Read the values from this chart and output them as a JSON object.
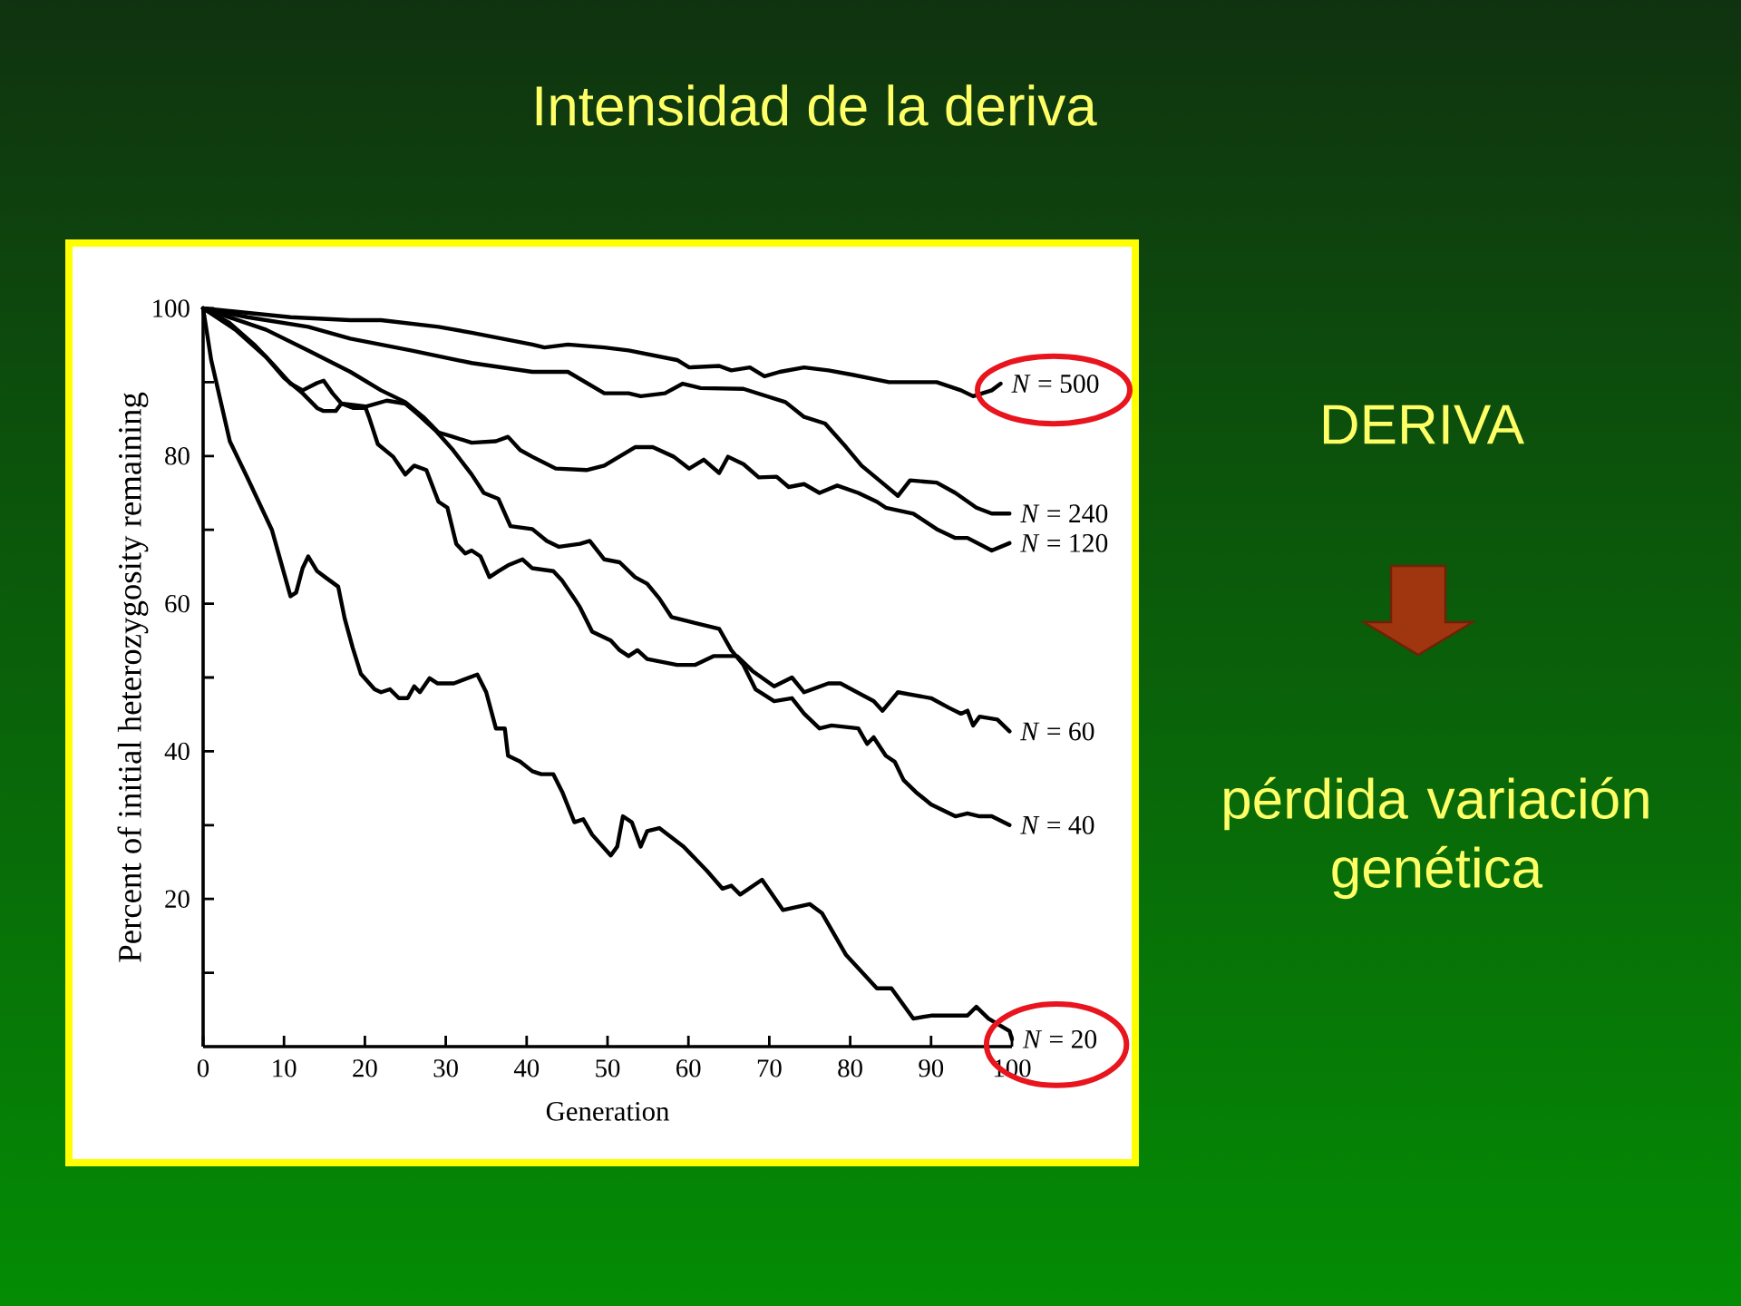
{
  "chart_data": {
    "type": "line",
    "title": "Intensidad de la deriva",
    "xlabel": "Generation",
    "ylabel": "Percent of initial heterozygosity remaining",
    "annotations": [
      "DERIVA",
      "pérdida variación genética"
    ],
    "xlim": [
      0,
      100
    ],
    "ylim": [
      0,
      100
    ],
    "xticks": [
      0,
      10,
      20,
      30,
      40,
      50,
      60,
      70,
      80,
      90,
      100
    ],
    "yticks": [
      {
        "value": 10,
        "label": null
      },
      20,
      {
        "value": 30,
        "label": null
      },
      40,
      {
        "value": 50,
        "label": null
      },
      60,
      {
        "value": 70,
        "label": null
      },
      80,
      {
        "value": 90,
        "label": null
      },
      100
    ],
    "marker": "none",
    "line_style": "solid",
    "series": [
      {
        "name": "*N* = 500",
        "color": "#000000",
        "x": [
          0,
          10.8,
          18.2,
          22,
          29.1,
          33.2,
          40.7,
          42.2,
          45.1,
          49.6,
          52.6,
          58.6,
          60.1,
          63.8,
          65.3,
          67.6,
          69.4,
          71.3,
          74.3,
          77.3,
          80.3,
          84.8,
          90.7,
          93.7,
          95.2,
          97.5,
          98.6
        ],
        "values": [
          100,
          98.8,
          98.4,
          98.4,
          97.5,
          96.7,
          95.1,
          94.7,
          95.1,
          94.7,
          94.3,
          93,
          92,
          92.2,
          91.6,
          92,
          90.8,
          91.4,
          92,
          91.6,
          91,
          90,
          90,
          88.9,
          88.1,
          88.9,
          89.8
        ]
      },
      {
        "name": "*N* = 240",
        "color": "#000000",
        "x": [
          0,
          5.5,
          13,
          18.2,
          25.7,
          33.2,
          40.7,
          45.1,
          49.6,
          52.6,
          54.1,
          57.1,
          59.3,
          61.5,
          66.8,
          72,
          74.3,
          76.9,
          79.5,
          81.4,
          83.6,
          85.9,
          87.4,
          90.7,
          93,
          95.6,
          97.5,
          99.7
        ],
        "values": [
          100,
          98.8,
          97.5,
          95.9,
          94.3,
          92.6,
          91.4,
          91.4,
          88.5,
          88.5,
          88.1,
          88.5,
          89.8,
          89.2,
          89.1,
          87.3,
          85.3,
          84.4,
          81.2,
          78.7,
          76.7,
          74.6,
          76.7,
          76.4,
          75,
          73,
          72.2,
          72.2
        ]
      },
      {
        "name": "*N* = 120",
        "color": "#000000",
        "x": [
          0,
          7.8,
          13,
          18.2,
          22,
          25,
          27.2,
          29.1,
          30.9,
          33.2,
          36.2,
          37.7,
          39.2,
          40.7,
          43.6,
          47.4,
          49.6,
          53.4,
          55.6,
          58.2,
          60.1,
          61.9,
          63.8,
          64.9,
          66.8,
          68.7,
          70.9,
          72.4,
          74.3,
          76.2,
          78.4,
          81,
          83.3,
          84.4,
          87.8,
          90.7,
          93,
          94.5,
          97.5,
          99.7
        ],
        "values": [
          100,
          97.1,
          94.3,
          91.4,
          88.9,
          87.3,
          85.3,
          83.2,
          82.6,
          81.8,
          82,
          82.6,
          80.8,
          79.9,
          78.3,
          78.1,
          78.7,
          81.2,
          81.2,
          79.9,
          78.3,
          79.5,
          77.7,
          79.9,
          78.9,
          77.1,
          77.2,
          75.8,
          76.2,
          75,
          76,
          75,
          73.8,
          73,
          72.2,
          70.1,
          68.9,
          68.9,
          67.2,
          68.2
        ]
      },
      {
        "name": "*N* = 60",
        "color": "#000000",
        "x": [
          0,
          4,
          7.8,
          10,
          12.3,
          14.1,
          14.9,
          16.4,
          17.1,
          18.6,
          20.1,
          20.5,
          21.6,
          23.5,
          25,
          26.1,
          27.6,
          29.1,
          30.2,
          31.3,
          32.4,
          33.2,
          34.3,
          35.4,
          36.5,
          37.7,
          39.5,
          40.7,
          43.3,
          44.4,
          45.9,
          46.6,
          48.1,
          50.4,
          51.5,
          52.6,
          53.7,
          54.9,
          58.6,
          60.8,
          63.1,
          66,
          67.9,
          70.6,
          72.8,
          74.3,
          77.3,
          78.8,
          82.9,
          84,
          85.9,
          90,
          92.2,
          93.7,
          94.5,
          95.2,
          96,
          98.2,
          99.7
        ],
        "values": [
          100,
          97.1,
          93.4,
          90.6,
          88.5,
          86.5,
          86.1,
          86.1,
          87.1,
          86.5,
          86.5,
          85.3,
          81.6,
          79.9,
          77.5,
          78.7,
          78.1,
          73.8,
          73,
          68.1,
          66.8,
          67.2,
          66.4,
          63.6,
          64.4,
          65.2,
          66,
          64.8,
          64.4,
          63.1,
          60.7,
          59.5,
          56.2,
          55,
          53.7,
          52.9,
          53.7,
          52.5,
          51.7,
          51.7,
          52.9,
          52.9,
          50.9,
          48.8,
          50,
          48,
          49.2,
          49.2,
          46.8,
          45.5,
          48,
          47.2,
          45.9,
          45.1,
          45.5,
          43.5,
          44.7,
          44.3,
          42.7
        ]
      },
      {
        "name": "*N* = 40",
        "color": "#000000",
        "x": [
          0,
          3.3,
          6.3,
          8.5,
          10.8,
          12.3,
          14.1,
          14.9,
          16,
          17.1,
          20.1,
          22.7,
          25,
          26.5,
          28.7,
          30.9,
          33.2,
          34.7,
          36.5,
          38,
          40.7,
          42.5,
          44,
          46.6,
          47.8,
          49.6,
          51.5,
          53.4,
          54.9,
          56.4,
          57.9,
          60.8,
          63.8,
          65.3,
          66.8,
          68.3,
          70.6,
          72.8,
          74.3,
          76.2,
          77.7,
          81,
          82.1,
          82.9,
          84.4,
          85.5,
          86.6,
          88.1,
          90,
          91.5,
          93,
          94.5,
          96,
          97.5,
          99.7
        ],
        "values": [
          100,
          98,
          95.1,
          92.6,
          89.8,
          88.9,
          89.9,
          90.2,
          88.5,
          87.1,
          86.7,
          87.5,
          87.1,
          85.7,
          83.5,
          80.8,
          77.5,
          75,
          74.2,
          70.5,
          70.1,
          68.5,
          67.7,
          68.1,
          68.5,
          66,
          65.6,
          63.6,
          62.7,
          60.7,
          58.2,
          57.4,
          56.6,
          53.7,
          51.7,
          48.4,
          46.8,
          47.2,
          45.1,
          43.1,
          43.5,
          43.1,
          41,
          41.9,
          39.4,
          38.6,
          36.1,
          34.5,
          32.8,
          32,
          31.2,
          31.6,
          31.2,
          31.2,
          30
        ]
      },
      {
        "name": "*N* = 20",
        "color": "#000000",
        "x": [
          0,
          1,
          3.3,
          5.5,
          8.5,
          10.8,
          11.5,
          12.3,
          13,
          14.1,
          15.2,
          16.7,
          17.5,
          18.5,
          19.5,
          21.2,
          22,
          23.1,
          24.2,
          25.3,
          26.1,
          26.8,
          28,
          29,
          31,
          33.9,
          35,
          36.2,
          37.3,
          37.7,
          39.2,
          40.7,
          41.8,
          43.3,
          44.4,
          45.9,
          47,
          48.1,
          50.4,
          51.2,
          51.9,
          53,
          54.1,
          54.9,
          56.4,
          59.4,
          62.3,
          64.2,
          65.3,
          66.4,
          69.1,
          71.7,
          75,
          76.5,
          79.5,
          83.3,
          85.1,
          87.8,
          90,
          94.5,
          95.6,
          97.1,
          99.7,
          100
        ],
        "values": [
          100,
          93,
          82,
          77,
          70,
          61,
          61.5,
          64.8,
          66.4,
          64.4,
          63.5,
          62.3,
          58,
          54,
          50.5,
          48.4,
          48,
          48.4,
          47.2,
          47.2,
          48.8,
          48,
          49.9,
          49.2,
          49.2,
          50.4,
          48,
          43.1,
          43.1,
          39.4,
          38.6,
          37.3,
          36.9,
          36.9,
          34.5,
          30.4,
          30.8,
          28.7,
          25.9,
          27.1,
          31.2,
          30.4,
          27.1,
          29.2,
          29.6,
          27.1,
          23.8,
          21.4,
          21.8,
          20.6,
          22.6,
          18.5,
          19.3,
          18.1,
          12.4,
          7.9,
          7.9,
          3.8,
          4.2,
          4.2,
          5.4,
          3.8,
          2.1,
          1
        ]
      }
    ]
  }
}
